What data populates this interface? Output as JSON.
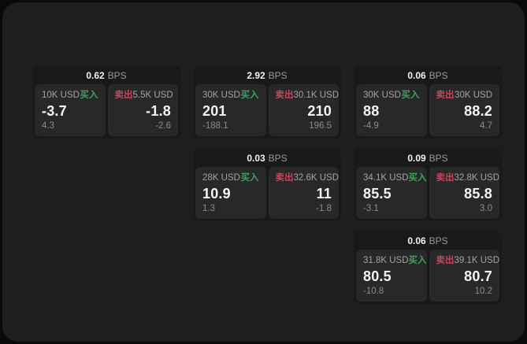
{
  "window": {
    "page_background": "#0a0a0a",
    "panel_background": "#1e1e1e"
  },
  "colors": {
    "card_background": "#191919",
    "cell_background": "#282828",
    "buy_green": "#3ca35f",
    "sell_red": "#c2485c",
    "value_white": "#f4f4f4",
    "label_gray": "#a3a3a3",
    "sub_gray": "#8b8b8b"
  },
  "labels": {
    "bps_unit": "BPS",
    "buy": "买入",
    "sell": "卖出"
  },
  "cards": [
    {
      "row": 1,
      "col": 1,
      "bps": "0.62",
      "buy": {
        "amount": "10K USD",
        "value": "-3.7",
        "sub": "4.3"
      },
      "sell": {
        "amount": "5.5K USD",
        "value": "-1.8",
        "sub": "-2.6"
      }
    },
    {
      "row": 1,
      "col": 2,
      "bps": "2.92",
      "buy": {
        "amount": "30K USD",
        "value": "201",
        "sub": "-188.1"
      },
      "sell": {
        "amount": "30.1K USD",
        "value": "210",
        "sub": "196.5"
      }
    },
    {
      "row": 1,
      "col": 3,
      "bps": "0.06",
      "buy": {
        "amount": "30K USD",
        "value": "88",
        "sub": "-4.9"
      },
      "sell": {
        "amount": "30K USD",
        "value": "88.2",
        "sub": "4.7"
      }
    },
    {
      "row": 2,
      "col": 2,
      "bps": "0.03",
      "buy": {
        "amount": "28K USD",
        "value": "10.9",
        "sub": "1.3"
      },
      "sell": {
        "amount": "32.6K USD",
        "value": "11",
        "sub": "-1.8"
      }
    },
    {
      "row": 2,
      "col": 3,
      "bps": "0.09",
      "buy": {
        "amount": "34.1K USD",
        "value": "85.5",
        "sub": "-3.1"
      },
      "sell": {
        "amount": "32.8K USD",
        "value": "85.8",
        "sub": "3.0"
      }
    },
    {
      "row": 3,
      "col": 3,
      "bps": "0.06",
      "buy": {
        "amount": "31.8K USD",
        "value": "80.5",
        "sub": "-10.8"
      },
      "sell": {
        "amount": "39.1K USD",
        "value": "80.7",
        "sub": "10.2"
      }
    }
  ]
}
